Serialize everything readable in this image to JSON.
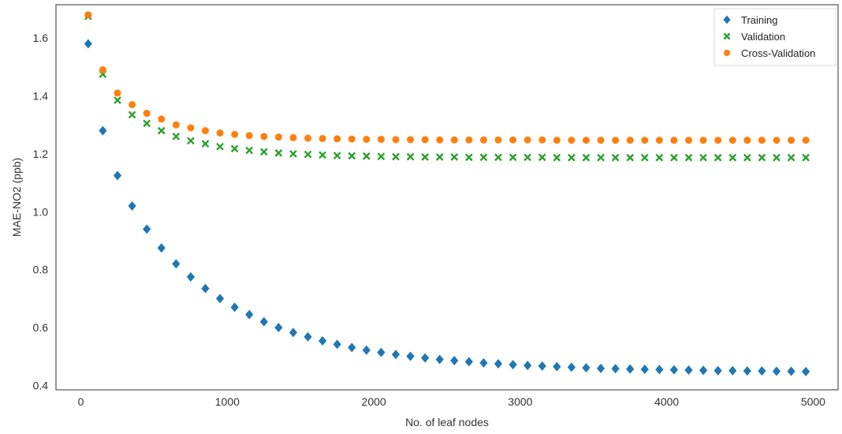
{
  "chart_data": {
    "type": "scatter",
    "title": "",
    "xlabel": "No. of leaf nodes",
    "ylabel": "MAE-NO2 (ppb)",
    "xlim": [
      -170,
      5170
    ],
    "ylim": [
      0.385,
      1.715
    ],
    "xticks": [
      0,
      1000,
      2000,
      3000,
      4000,
      5000
    ],
    "yticks": [
      0.4,
      0.6,
      0.8,
      1.0,
      1.2,
      1.4,
      1.6
    ],
    "xtick_labels": [
      "0",
      "1000",
      "2000",
      "3000",
      "4000",
      "5000"
    ],
    "ytick_labels": [
      "0.4",
      "0.6",
      "0.8",
      "1.0",
      "1.2",
      "1.4",
      "1.6"
    ],
    "grid": false,
    "legend_position": "top-right",
    "x": [
      50,
      150,
      250,
      350,
      450,
      550,
      650,
      750,
      850,
      950,
      1050,
      1150,
      1250,
      1350,
      1450,
      1550,
      1650,
      1750,
      1850,
      1950,
      2050,
      2150,
      2250,
      2350,
      2450,
      2550,
      2650,
      2750,
      2850,
      2950,
      3050,
      3150,
      3250,
      3350,
      3450,
      3550,
      3650,
      3750,
      3850,
      3950,
      4050,
      4150,
      4250,
      4350,
      4450,
      4550,
      4650,
      4750,
      4850,
      4950
    ],
    "series": [
      {
        "name": "Training",
        "marker": "diamond",
        "color": "#1f77b4",
        "values": [
          1.58,
          1.28,
          1.125,
          1.02,
          0.94,
          0.875,
          0.82,
          0.775,
          0.735,
          0.7,
          0.67,
          0.645,
          0.62,
          0.6,
          0.583,
          0.568,
          0.554,
          0.542,
          0.531,
          0.522,
          0.514,
          0.507,
          0.501,
          0.495,
          0.49,
          0.486,
          0.482,
          0.478,
          0.475,
          0.472,
          0.469,
          0.467,
          0.465,
          0.463,
          0.461,
          0.459,
          0.458,
          0.457,
          0.456,
          0.455,
          0.454,
          0.453,
          0.452,
          0.451,
          0.451,
          0.45,
          0.45,
          0.449,
          0.449,
          0.448
        ]
      },
      {
        "name": "Validation",
        "marker": "x",
        "color": "#2ca02c",
        "values": [
          1.675,
          1.475,
          1.385,
          1.335,
          1.305,
          1.28,
          1.26,
          1.245,
          1.235,
          1.225,
          1.218,
          1.212,
          1.207,
          1.203,
          1.2,
          1.198,
          1.196,
          1.194,
          1.193,
          1.192,
          1.191,
          1.19,
          1.19,
          1.189,
          1.189,
          1.189,
          1.188,
          1.188,
          1.188,
          1.188,
          1.188,
          1.188,
          1.187,
          1.187,
          1.187,
          1.187,
          1.187,
          1.187,
          1.187,
          1.187,
          1.187,
          1.187,
          1.187,
          1.187,
          1.187,
          1.187,
          1.187,
          1.187,
          1.187,
          1.187
        ]
      },
      {
        "name": "Cross-Validation",
        "marker": "circle",
        "color": "#ff7f0e",
        "values": [
          1.68,
          1.49,
          1.41,
          1.37,
          1.34,
          1.32,
          1.3,
          1.29,
          1.28,
          1.272,
          1.267,
          1.263,
          1.26,
          1.258,
          1.256,
          1.254,
          1.253,
          1.252,
          1.251,
          1.25,
          1.25,
          1.249,
          1.249,
          1.249,
          1.248,
          1.248,
          1.248,
          1.248,
          1.248,
          1.248,
          1.248,
          1.248,
          1.247,
          1.247,
          1.247,
          1.247,
          1.247,
          1.247,
          1.247,
          1.247,
          1.247,
          1.247,
          1.247,
          1.247,
          1.247,
          1.247,
          1.247,
          1.247,
          1.247,
          1.247
        ]
      }
    ]
  }
}
